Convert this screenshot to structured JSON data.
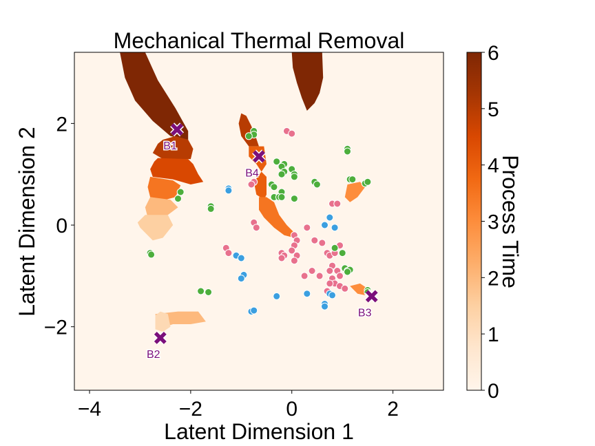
{
  "chart_data": {
    "type": "scatter",
    "title": "Mechanical Thermal Removal",
    "xlabel": "Latent Dimension 1",
    "ylabel": "Latent Dimension 2",
    "xlim": [
      -4.3,
      3.0
    ],
    "ylim": [
      -3.25,
      3.4
    ],
    "xticks": [
      -4,
      -2,
      0,
      2
    ],
    "xtick_labels": [
      "−4",
      "−2",
      "0",
      "2"
    ],
    "yticks": [
      -2,
      0,
      2
    ],
    "ytick_labels": [
      "−2",
      "0",
      "2"
    ],
    "grid": false,
    "legend": "none",
    "colorbar": {
      "label": "Process Time",
      "ticks": [
        0,
        1,
        2,
        3,
        4,
        5,
        6
      ],
      "range": [
        0,
        6
      ],
      "colormap": "Oranges"
    },
    "background": "#fff5eb",
    "series": [
      {
        "color": "#e8718d",
        "points": [
          [
            -0.1,
            1.85
          ],
          [
            0.0,
            1.8
          ],
          [
            -0.75,
            0.85
          ],
          [
            -0.8,
            0.8
          ],
          [
            -0.75,
            0.05
          ],
          [
            -0.7,
            -0.05
          ],
          [
            0.05,
            -0.2
          ],
          [
            0.1,
            -0.3
          ],
          [
            0.3,
            -0.05
          ],
          [
            0.05,
            -0.4
          ],
          [
            -0.2,
            -0.55
          ],
          [
            -0.15,
            -0.6
          ],
          [
            -0.2,
            -0.65
          ],
          [
            0.0,
            -0.5
          ],
          [
            0.1,
            -0.6
          ],
          [
            0.05,
            -0.7
          ],
          [
            -1.3,
            -0.45
          ],
          [
            -1.25,
            -0.55
          ],
          [
            0.45,
            -0.3
          ],
          [
            0.6,
            -0.35
          ],
          [
            0.7,
            -0.55
          ],
          [
            0.75,
            -0.6
          ],
          [
            0.85,
            -0.55
          ],
          [
            0.95,
            -0.4
          ],
          [
            0.8,
            -0.8
          ],
          [
            0.75,
            -0.9
          ],
          [
            0.9,
            -0.9
          ],
          [
            0.95,
            -1.0
          ],
          [
            0.8,
            -1.05
          ],
          [
            0.85,
            -1.15
          ],
          [
            0.95,
            -1.2
          ],
          [
            1.05,
            -1.25
          ],
          [
            0.75,
            -1.15
          ],
          [
            0.7,
            -1.3
          ],
          [
            0.4,
            -0.9
          ],
          [
            0.55,
            -1.0
          ],
          [
            0.25,
            -1.0
          ],
          [
            0.8,
            0.42
          ],
          [
            0.9,
            0.42
          ]
        ]
      },
      {
        "color": "#3b9fe0",
        "points": [
          [
            -1.25,
            0.72
          ],
          [
            -1.25,
            0.68
          ],
          [
            -1.1,
            -0.6
          ],
          [
            -1.0,
            -0.65
          ],
          [
            -0.95,
            -0.98
          ],
          [
            -1.0,
            -1.05
          ],
          [
            -0.8,
            -1.7
          ],
          [
            -0.75,
            -1.68
          ],
          [
            -0.3,
            -1.4
          ],
          [
            0.3,
            -1.35
          ],
          [
            0.65,
            -1.55
          ],
          [
            0.65,
            -1.6
          ],
          [
            0.75,
            -1.35
          ],
          [
            0.8,
            -1.38
          ],
          [
            0.75,
            0.15
          ],
          [
            0.65,
            0.0
          ],
          [
            0.85,
            -0.05
          ]
        ]
      },
      {
        "color": "#4dae3c",
        "points": [
          [
            -0.75,
            1.85
          ],
          [
            -0.75,
            1.78
          ],
          [
            -0.85,
            1.75
          ],
          [
            -0.3,
            1.25
          ],
          [
            -0.15,
            1.2
          ],
          [
            -0.2,
            1.15
          ],
          [
            -0.15,
            1.05
          ],
          [
            -0.2,
            1.0
          ],
          [
            0.0,
            1.1
          ],
          [
            0.05,
            1.0
          ],
          [
            0.05,
            0.95
          ],
          [
            -0.4,
            0.8
          ],
          [
            -0.35,
            0.75
          ],
          [
            -0.2,
            0.65
          ],
          [
            -0.35,
            0.55
          ],
          [
            -0.25,
            0.55
          ],
          [
            -0.2,
            0.55
          ],
          [
            0.05,
            0.52
          ],
          [
            0.45,
            0.85
          ],
          [
            0.5,
            0.8
          ],
          [
            1.1,
            1.5
          ],
          [
            1.1,
            1.45
          ],
          [
            1.15,
            0.9
          ],
          [
            1.2,
            0.9
          ],
          [
            1.45,
            0.82
          ],
          [
            1.5,
            0.85
          ],
          [
            -2.2,
            0.65
          ],
          [
            -2.25,
            0.52
          ],
          [
            -1.6,
            0.37
          ],
          [
            -1.6,
            0.32
          ],
          [
            -2.8,
            -0.55
          ],
          [
            -2.78,
            -0.58
          ],
          [
            -1.8,
            -1.3
          ],
          [
            -1.65,
            -1.32
          ],
          [
            0.85,
            -0.45
          ],
          [
            1.0,
            -0.55
          ],
          [
            1.05,
            -0.85
          ],
          [
            1.1,
            -0.9
          ],
          [
            1.15,
            -0.88
          ],
          [
            1.1,
            -0.92
          ],
          [
            1.5,
            -1.28
          ],
          [
            1.5,
            -1.32
          ]
        ]
      }
    ],
    "markers": [
      {
        "label": "B1",
        "x": -2.27,
        "y": 1.88,
        "color": "#7b0f7b"
      },
      {
        "label": "B2",
        "x": -2.6,
        "y": -2.22,
        "color": "#7b0f7b"
      },
      {
        "label": "B3",
        "x": 1.58,
        "y": -1.4,
        "color": "#7b0f7b"
      },
      {
        "label": "B4",
        "x": -0.65,
        "y": 1.35,
        "color": "#7b0f7b"
      }
    ],
    "regions": [
      {
        "level": 6.0,
        "points": [
          [
            -3.4,
            3.4
          ],
          [
            -2.9,
            3.4
          ],
          [
            -2.65,
            2.85
          ],
          [
            -2.3,
            2.3
          ],
          [
            -2.05,
            1.85
          ],
          [
            -2.05,
            1.68
          ],
          [
            -2.4,
            1.75
          ],
          [
            -2.75,
            2.05
          ],
          [
            -3.1,
            2.45
          ],
          [
            -3.3,
            2.9
          ]
        ]
      },
      {
        "level": 6.0,
        "points": [
          [
            0.0,
            3.4
          ],
          [
            0.6,
            3.4
          ],
          [
            0.62,
            2.9
          ],
          [
            0.55,
            2.6
          ],
          [
            0.45,
            2.4
          ],
          [
            0.3,
            2.25
          ],
          [
            0.2,
            2.5
          ],
          [
            0.1,
            2.8
          ],
          [
            0.02,
            3.1
          ]
        ]
      },
      {
        "level": 5.0,
        "points": [
          [
            -2.55,
            1.68
          ],
          [
            -2.3,
            1.75
          ],
          [
            -2.05,
            1.68
          ],
          [
            -1.95,
            1.5
          ],
          [
            -2.0,
            1.3
          ],
          [
            -2.25,
            1.3
          ],
          [
            -2.55,
            1.3
          ],
          [
            -2.75,
            1.42
          ],
          [
            -2.65,
            1.6
          ]
        ]
      },
      {
        "level": 4.5,
        "points": [
          [
            -2.65,
            1.32
          ],
          [
            -2.05,
            1.3
          ],
          [
            -1.95,
            1.2
          ],
          [
            -1.85,
            1.0
          ],
          [
            -1.75,
            0.85
          ],
          [
            -2.0,
            0.8
          ],
          [
            -2.35,
            0.9
          ],
          [
            -2.75,
            0.95
          ],
          [
            -2.8,
            1.1
          ],
          [
            -2.72,
            1.25
          ]
        ]
      },
      {
        "level": 3.5,
        "points": [
          [
            -2.8,
            0.95
          ],
          [
            -2.35,
            0.88
          ],
          [
            -2.2,
            0.78
          ],
          [
            -2.3,
            0.55
          ],
          [
            -2.5,
            0.5
          ],
          [
            -2.8,
            0.55
          ],
          [
            -2.85,
            0.75
          ]
        ]
      },
      {
        "level": 2.0,
        "points": [
          [
            -2.8,
            0.55
          ],
          [
            -2.4,
            0.5
          ],
          [
            -2.25,
            0.35
          ],
          [
            -2.45,
            0.2
          ],
          [
            -2.85,
            0.15
          ],
          [
            -2.9,
            0.35
          ]
        ]
      },
      {
        "level": 1.5,
        "points": [
          [
            -2.9,
            0.2
          ],
          [
            -2.45,
            0.2
          ],
          [
            -2.35,
            0.0
          ],
          [
            -2.55,
            -0.25
          ],
          [
            -2.75,
            -0.3
          ],
          [
            -3.0,
            -0.05
          ],
          [
            -3.05,
            0.05
          ]
        ]
      },
      {
        "level": 5.0,
        "points": [
          [
            -1.0,
            2.2
          ],
          [
            -0.9,
            2.15
          ],
          [
            -0.8,
            1.95
          ],
          [
            -0.7,
            1.7
          ],
          [
            -0.65,
            1.55
          ],
          [
            -0.85,
            1.55
          ],
          [
            -1.0,
            1.75
          ],
          [
            -1.05,
            2.0
          ]
        ]
      },
      {
        "level": 4.0,
        "points": [
          [
            -0.85,
            1.55
          ],
          [
            -0.55,
            1.55
          ],
          [
            -0.5,
            1.2
          ],
          [
            -0.6,
            1.05
          ],
          [
            -0.7,
            1.2
          ],
          [
            -0.85,
            1.35
          ]
        ]
      },
      {
        "level": 4.0,
        "points": [
          [
            -0.6,
            1.05
          ],
          [
            -0.5,
            0.95
          ],
          [
            -0.5,
            0.6
          ],
          [
            -0.55,
            0.5
          ],
          [
            -0.7,
            0.6
          ],
          [
            -0.75,
            0.85
          ]
        ]
      },
      {
        "level": 3.5,
        "points": [
          [
            -0.65,
            0.55
          ],
          [
            -0.5,
            0.55
          ],
          [
            -0.35,
            0.45
          ],
          [
            -0.25,
            0.2
          ],
          [
            -0.1,
            0.0
          ],
          [
            0.05,
            -0.15
          ],
          [
            0.05,
            -0.25
          ],
          [
            -0.15,
            -0.2
          ],
          [
            -0.35,
            -0.05
          ],
          [
            -0.55,
            0.15
          ],
          [
            -0.65,
            0.3
          ]
        ]
      },
      {
        "level": 3.0,
        "points": [
          [
            1.1,
            0.8
          ],
          [
            1.35,
            0.85
          ],
          [
            1.45,
            0.75
          ],
          [
            1.3,
            0.55
          ],
          [
            1.15,
            0.45
          ],
          [
            1.05,
            0.55
          ]
        ]
      },
      {
        "level": 3.0,
        "points": [
          [
            1.15,
            -1.2
          ],
          [
            1.35,
            -1.15
          ],
          [
            1.5,
            -1.25
          ],
          [
            1.45,
            -1.38
          ],
          [
            1.3,
            -1.35
          ]
        ]
      },
      {
        "level": 2.0,
        "points": [
          [
            -2.7,
            -1.75
          ],
          [
            -2.25,
            -1.7
          ],
          [
            -1.85,
            -1.7
          ],
          [
            -1.7,
            -1.9
          ],
          [
            -2.0,
            -1.95
          ],
          [
            -2.35,
            -1.95
          ],
          [
            -2.65,
            -2.05
          ]
        ]
      },
      {
        "level": 1.2,
        "points": [
          [
            -2.7,
            -1.78
          ],
          [
            -2.6,
            -1.7
          ],
          [
            -2.45,
            -1.75
          ],
          [
            -2.4,
            -2.0
          ],
          [
            -2.55,
            -2.1
          ],
          [
            -2.7,
            -2.05
          ]
        ]
      }
    ]
  },
  "text": {
    "title": "Mechanical Thermal Removal",
    "xlabel": "Latent Dimension 1",
    "ylabel": "Latent Dimension 2",
    "cblabel": "Process Time"
  }
}
